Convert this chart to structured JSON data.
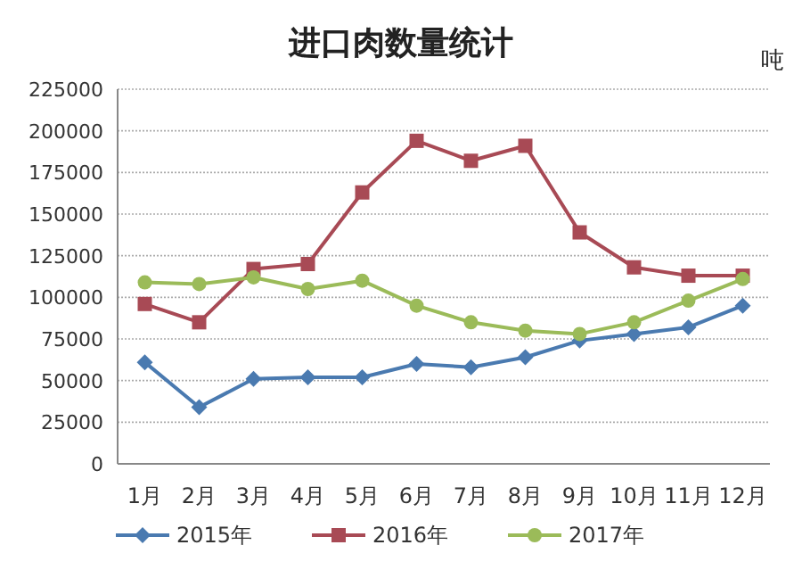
{
  "chart_data": {
    "type": "line",
    "title": "进口肉数量统计",
    "ylabel": "吨",
    "categories": [
      "1月",
      "2月",
      "3月",
      "4月",
      "5月",
      "6月",
      "7月",
      "8月",
      "9月",
      "10月",
      "11月",
      "12月"
    ],
    "series": [
      {
        "name": "2015年",
        "color": "#4a7ab0",
        "marker": "diamond",
        "values": [
          61000,
          34000,
          51000,
          52000,
          52000,
          60000,
          58000,
          64000,
          74000,
          78000,
          82000,
          95000
        ]
      },
      {
        "name": "2016年",
        "color": "#a84a55",
        "marker": "square",
        "values": [
          96000,
          85000,
          117000,
          120000,
          163000,
          194000,
          182000,
          191000,
          139000,
          118000,
          113000,
          113000
        ]
      },
      {
        "name": "2017年",
        "color": "#9bbb59",
        "marker": "circle",
        "values": [
          109000,
          108000,
          112000,
          105000,
          110000,
          95000,
          85000,
          80000,
          78000,
          85000,
          98000,
          111000
        ]
      }
    ],
    "ylim": [
      0,
      225000
    ],
    "yticks": [
      0,
      25000,
      50000,
      75000,
      100000,
      125000,
      150000,
      175000,
      200000,
      225000
    ],
    "grid": "y",
    "legend": "bottom"
  }
}
